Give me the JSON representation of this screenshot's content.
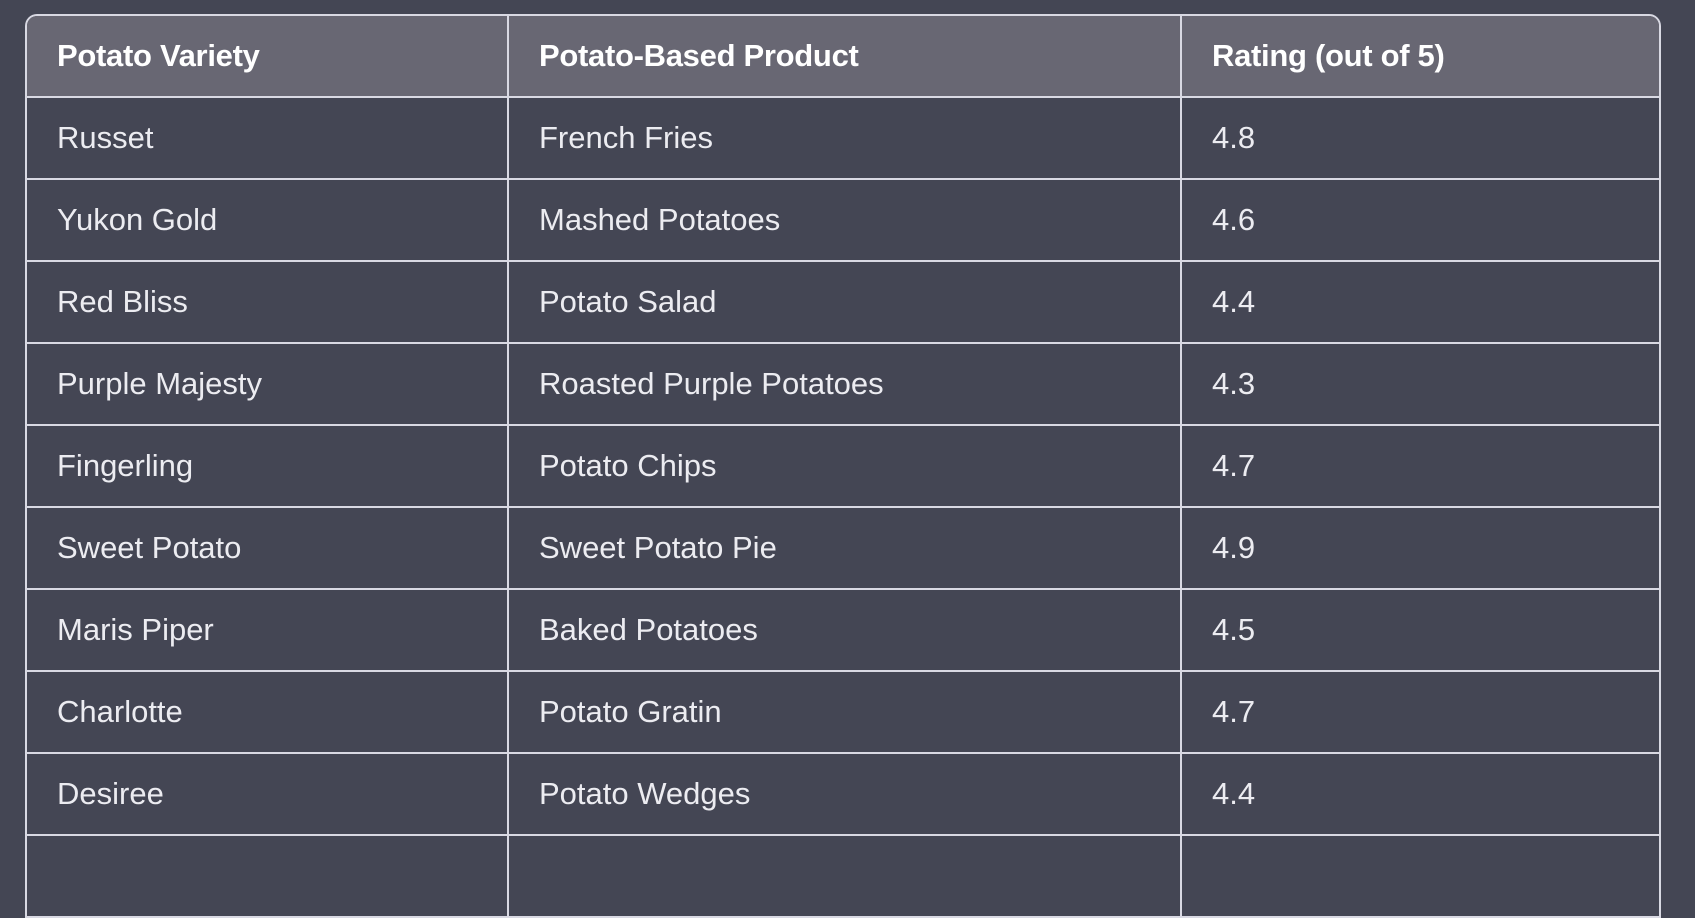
{
  "table": {
    "headers": [
      "Potato Variety",
      "Potato-Based Product",
      "Rating (out of 5)"
    ],
    "rows": [
      [
        "Russet",
        "French Fries",
        "4.8"
      ],
      [
        "Yukon Gold",
        "Mashed Potatoes",
        "4.6"
      ],
      [
        "Red Bliss",
        "Potato Salad",
        "4.4"
      ],
      [
        "Purple Majesty",
        "Roasted Purple Potatoes",
        "4.3"
      ],
      [
        "Fingerling",
        "Potato Chips",
        "4.7"
      ],
      [
        "Sweet Potato",
        "Sweet Potato Pie",
        "4.9"
      ],
      [
        "Maris Piper",
        "Baked Potatoes",
        "4.5"
      ],
      [
        "Charlotte",
        "Potato Gratin",
        "4.7"
      ],
      [
        "Desiree",
        "Potato Wedges",
        "4.4"
      ],
      [
        "",
        "",
        ""
      ]
    ]
  },
  "colors": {
    "background": "#444654",
    "header": "#686773",
    "border": "#d9d9e3",
    "text": "#ececf1"
  }
}
